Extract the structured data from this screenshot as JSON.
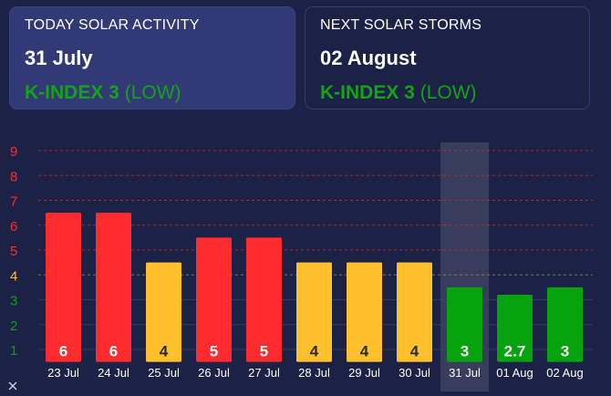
{
  "today_card": {
    "title": "TODAY SOLAR ACTIVITY",
    "date": "31 July",
    "k_index_label": "K-INDEX 3",
    "level": "(LOW)"
  },
  "next_card": {
    "title": "NEXT SOLAR STORMS",
    "date": "02 August",
    "k_index_label": "K-INDEX 3",
    "level": "(LOW)"
  },
  "colors": {
    "high": "#fe2b2f",
    "medium": "#fec02c",
    "low": "#07a30e",
    "background": "#1c2146",
    "card_today": "#323a76"
  },
  "footer_icon": "close-icon",
  "chart_data": {
    "type": "bar",
    "categories": [
      "23 Jul",
      "24 Jul",
      "25 Jul",
      "26 Jul",
      "27 Jul",
      "28 Jul",
      "29 Jul",
      "30 Jul",
      "31 Jul",
      "01 Aug",
      "02 Aug"
    ],
    "values": [
      6,
      6,
      4,
      5,
      5,
      4,
      4,
      4,
      3,
      2.7,
      3
    ],
    "value_labels": [
      "6",
      "6",
      "4",
      "5",
      "5",
      "4",
      "4",
      "4",
      "3",
      "2.7",
      "3"
    ],
    "bar_colors": [
      "#fe2b2f",
      "#fe2b2f",
      "#fec02c",
      "#fe2b2f",
      "#fe2b2f",
      "#fec02c",
      "#fec02c",
      "#fec02c",
      "#07a30e",
      "#07a30e",
      "#07a30e"
    ],
    "highlight_category": "31 Jul",
    "y_ticks": [
      "1",
      "2",
      "3",
      "4",
      "5",
      "6",
      "7",
      "8",
      "9"
    ],
    "y_tick_colors": [
      "#07a30e",
      "#07a30e",
      "#07a30e",
      "#fec02c",
      "#fe2b2f",
      "#fe2b2f",
      "#fe2b2f",
      "#fe2b2f",
      "#fe2b2f"
    ],
    "ylim": [
      1,
      9
    ],
    "grid": true
  }
}
